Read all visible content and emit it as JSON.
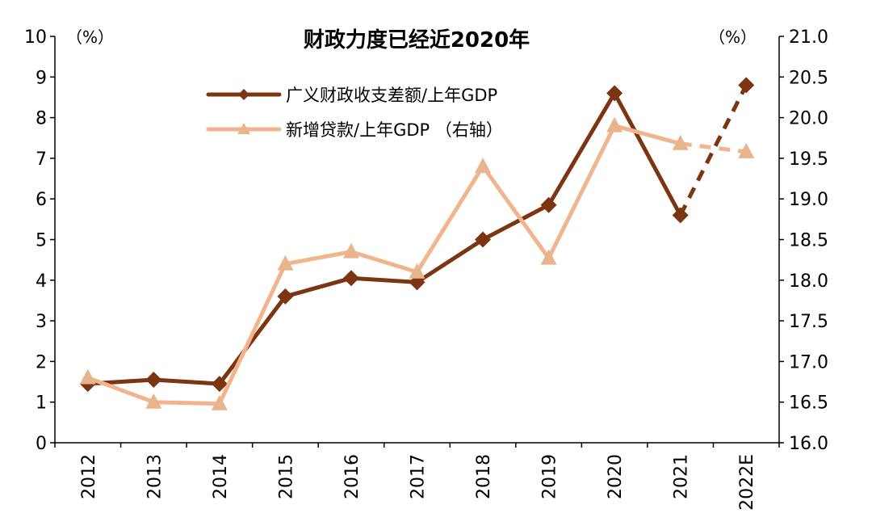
{
  "colors": {
    "series1": "#7B3510",
    "series2": "#F2B48C",
    "series2_marker": "#E6B58C",
    "axis": "#000000"
  },
  "chart_data": {
    "type": "line",
    "title": "财政力度已经近2020年",
    "categories": [
      "2012",
      "2013",
      "2014",
      "2015",
      "2016",
      "2017",
      "2018",
      "2019",
      "2020",
      "2021",
      "2022E"
    ],
    "left_axis": {
      "unit": "（%）",
      "ylim": [
        0,
        10
      ],
      "ticks": [
        "0",
        "1",
        "2",
        "3",
        "4",
        "5",
        "6",
        "7",
        "8",
        "9",
        "10"
      ]
    },
    "right_axis": {
      "unit": "（%）",
      "ylim": [
        16.0,
        21.0
      ],
      "ticks": [
        "16.0",
        "16.5",
        "17.0",
        "17.5",
        "18.0",
        "18.5",
        "19.0",
        "19.5",
        "20.0",
        "20.5",
        "21.0"
      ]
    },
    "series": [
      {
        "name": "广义财政收支差额/上年GDP",
        "axis": "left",
        "marker": "diamond",
        "values": [
          1.45,
          1.55,
          1.45,
          3.6,
          4.05,
          3.95,
          5.0,
          5.85,
          8.6,
          5.6,
          8.8
        ],
        "dashed_from_index": 9
      },
      {
        "name": "新增贷款/上年GDP （右轴）",
        "axis": "right",
        "marker": "triangle",
        "values": [
          16.8,
          16.5,
          16.48,
          18.2,
          18.35,
          18.1,
          19.4,
          18.27,
          19.9,
          19.68,
          19.58
        ],
        "dashed_from_index": 9
      }
    ],
    "legend_position": "top-center"
  }
}
